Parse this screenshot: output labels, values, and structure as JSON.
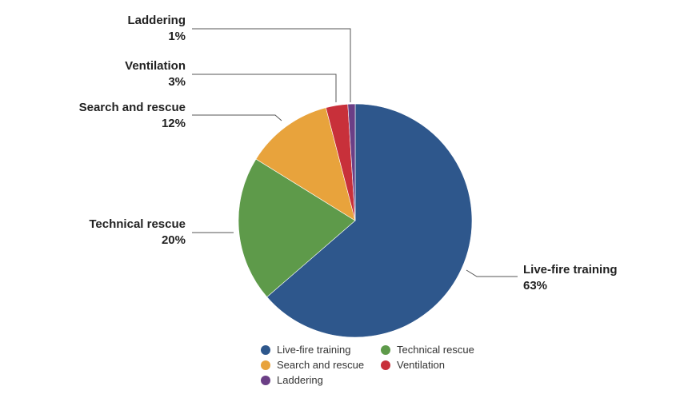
{
  "chart_data": {
    "type": "pie",
    "slices": [
      {
        "label": "Live-fire training",
        "value": 63,
        "value_label": "63%",
        "color": "#2e578c"
      },
      {
        "label": "Technical rescue",
        "value": 20,
        "value_label": "20%",
        "color": "#5e9a4a"
      },
      {
        "label": "Search and rescue",
        "value": 12,
        "value_label": "12%",
        "color": "#e8a33c"
      },
      {
        "label": "Ventilation",
        "value": 3,
        "value_label": "3%",
        "color": "#c8303a"
      },
      {
        "label": "Laddering",
        "value": 1,
        "value_label": "1%",
        "color": "#6b3f86"
      }
    ],
    "start_angle_deg": 0,
    "direction": "clockwise",
    "legend": {
      "position": "bottom",
      "entries": [
        "Live-fire training",
        "Technical rescue",
        "Search and rescue",
        "Ventilation",
        "Laddering"
      ]
    }
  }
}
